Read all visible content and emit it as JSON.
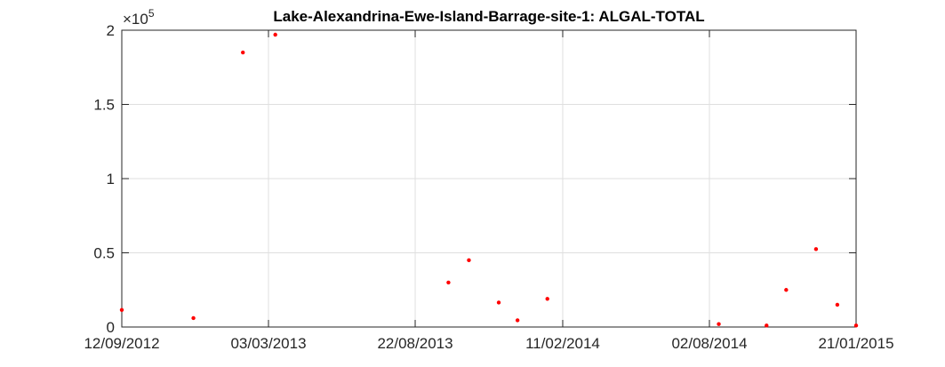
{
  "chart_data": {
    "type": "scatter",
    "title": "Lake-Alexandrina-Ewe-Island-Barrage-site-1: ALGAL-TOTAL",
    "xlabel": "",
    "ylabel": "",
    "y_exponent_base": "×10",
    "y_exponent_power": "5",
    "x_range": [
      "2012-09-12",
      "2015-01-21"
    ],
    "ylim": [
      0,
      2
    ],
    "x_ticks": [
      {
        "date": "2012-09-12",
        "label": "12/09/2012"
      },
      {
        "date": "2013-03-03",
        "label": "03/03/2013"
      },
      {
        "date": "2013-08-22",
        "label": "22/08/2013"
      },
      {
        "date": "2014-02-11",
        "label": "11/02/2014"
      },
      {
        "date": "2014-08-02",
        "label": "02/08/2014"
      },
      {
        "date": "2015-01-21",
        "label": "21/01/2015"
      }
    ],
    "y_ticks": [
      {
        "value": 0,
        "label": "0"
      },
      {
        "value": 0.5,
        "label": "0.5"
      },
      {
        "value": 1,
        "label": "1"
      },
      {
        "value": 1.5,
        "label": "1.5"
      },
      {
        "value": 2,
        "label": "2"
      }
    ],
    "grid": true,
    "marker_color": "#ff0000",
    "axis_color": "#262626",
    "grid_color": "#dfdfdf",
    "points": [
      {
        "x": "2012-09-12",
        "y": 0.115
      },
      {
        "x": "2012-12-05",
        "y": 0.06
      },
      {
        "x": "2013-02-01",
        "y": 1.85
      },
      {
        "x": "2013-03-11",
        "y": 1.97
      },
      {
        "x": "2013-09-30",
        "y": 0.3
      },
      {
        "x": "2013-10-24",
        "y": 0.45
      },
      {
        "x": "2013-11-28",
        "y": 0.165
      },
      {
        "x": "2013-12-20",
        "y": 0.045
      },
      {
        "x": "2014-01-24",
        "y": 0.19
      },
      {
        "x": "2014-08-13",
        "y": 0.02
      },
      {
        "x": "2014-10-08",
        "y": 0.01
      },
      {
        "x": "2014-10-31",
        "y": 0.25
      },
      {
        "x": "2014-12-05",
        "y": 0.525
      },
      {
        "x": "2014-12-30",
        "y": 0.15
      },
      {
        "x": "2015-01-21",
        "y": 0.01
      }
    ]
  }
}
